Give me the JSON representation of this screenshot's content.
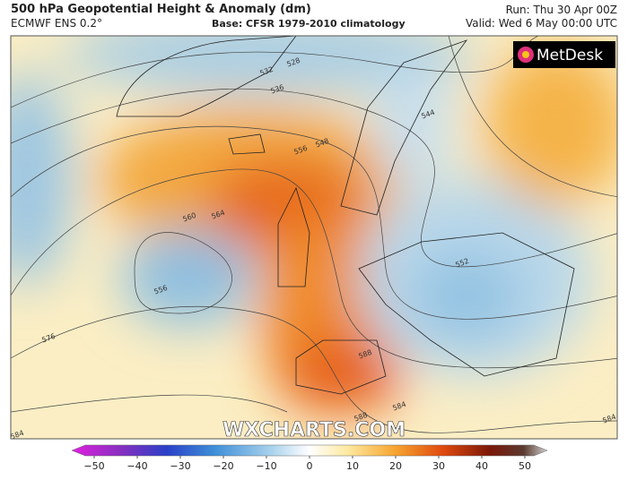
{
  "header": {
    "title": "500 hPa Geopotential Height & Anomaly (dm)",
    "model": "ECMWF ENS 0.2°",
    "base": "Base: CFSR 1979-2010 climatology",
    "run": "Run: Thu 30 Apr 00Z",
    "valid": "Valid: Wed 6 May 00:00 UTC"
  },
  "branding": {
    "logo": "MetDesk",
    "watermark": "WXCHARTS.COM"
  },
  "contour_labels": [
    "528",
    "532",
    "536",
    "544",
    "548",
    "556",
    "560",
    "564",
    "556",
    "552",
    "576",
    "588",
    "584",
    "588",
    "584",
    "584"
  ],
  "colorbar": {
    "ticks": [
      "−50",
      "−40",
      "−30",
      "−20",
      "−10",
      "0",
      "10",
      "20",
      "30",
      "40",
      "50"
    ]
  }
}
